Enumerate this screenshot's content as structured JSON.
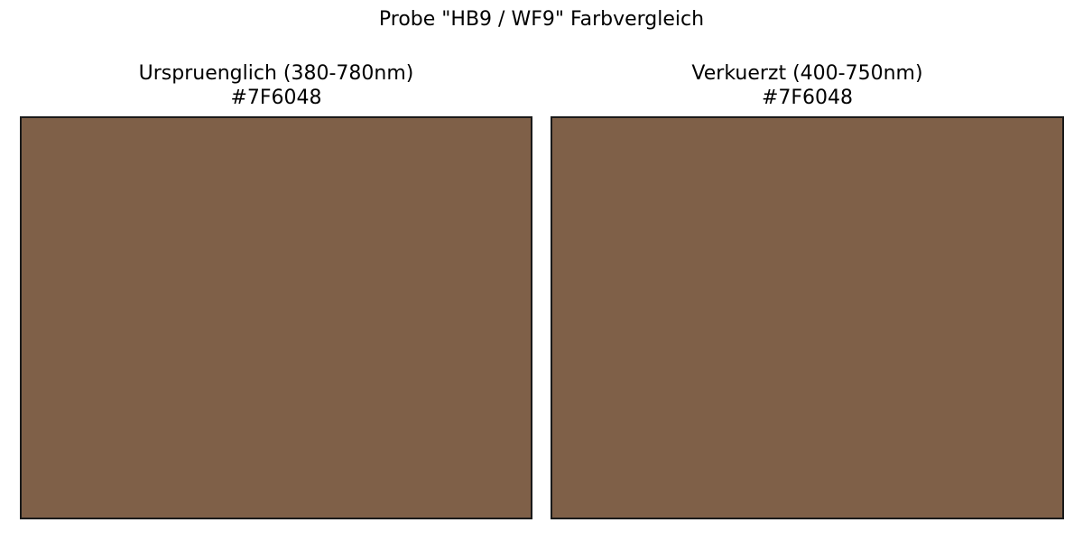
{
  "chart_data": {
    "type": "color_swatch_comparison",
    "title": "Probe \"HB9 / WF9\" Farbvergleich",
    "panels": [
      {
        "name": "Ursprueglich",
        "label": "Urspruenglich (380-780nm)",
        "hex": "#7F6048",
        "fill": "#7F6048"
      },
      {
        "name": "Verkuerzt",
        "label": "Verkuerzt (400-750nm)",
        "hex": "#7F6048",
        "fill": "#7F6048"
      }
    ],
    "grid": false,
    "axes_ticks": false
  }
}
